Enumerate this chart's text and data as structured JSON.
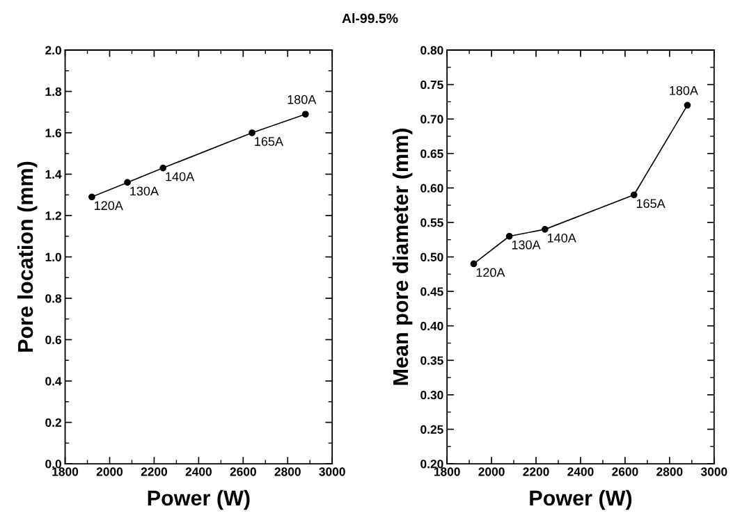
{
  "chart_data": [
    {
      "type": "line",
      "title": "Al-99.5%",
      "xlabel": "Power (W)",
      "ylabel": "Pore location (mm)",
      "x": [
        1920,
        2080,
        2240,
        2640,
        2880
      ],
      "series": [
        {
          "color": "#000000",
          "values": [
            1.29,
            1.36,
            1.43,
            1.6,
            1.69
          ]
        }
      ],
      "marker": "circle",
      "line_style": "solid",
      "xlim": [
        1800,
        3000
      ],
      "xticks": [
        1800,
        2000,
        2200,
        2400,
        2600,
        2800,
        3000
      ],
      "ylim": [
        0,
        2
      ],
      "yticks": [
        {
          "value": 0,
          "label": "0.0"
        },
        {
          "value": 0.2,
          "label": "0.2"
        },
        {
          "value": 0.4,
          "label": "0.4"
        },
        {
          "value": 0.6,
          "label": "0.6"
        },
        {
          "value": 0.8,
          "label": "0.8"
        },
        {
          "value": 1.0,
          "label": "1.0"
        },
        {
          "value": 1.2,
          "label": "1.2"
        },
        {
          "value": 1.4,
          "label": "1.4"
        },
        {
          "value": 1.6,
          "label": "1.6"
        },
        {
          "value": 1.8,
          "label": "1.8"
        },
        {
          "value": 2.0,
          "label": "2.0"
        }
      ],
      "annotations": [
        {
          "text": "120A",
          "x": 1920,
          "y": 1.29
        },
        {
          "text": "130A",
          "x": 2080,
          "y": 1.36
        },
        {
          "text": "140A",
          "x": 2240,
          "y": 1.43
        },
        {
          "text": "165A",
          "x": 2640,
          "y": 1.6
        },
        {
          "text": "180A",
          "x": 2880,
          "y": 1.69
        }
      ]
    },
    {
      "type": "line",
      "xlabel": "Power (W)",
      "ylabel": "Mean pore diameter (mm)",
      "x": [
        1920,
        2080,
        2240,
        2640,
        2880
      ],
      "series": [
        {
          "color": "#000000",
          "values": [
            0.49,
            0.53,
            0.54,
            0.59,
            0.72
          ]
        }
      ],
      "marker": "circle",
      "line_style": "solid",
      "xlim": [
        1800,
        3000
      ],
      "xticks": [
        1800,
        2000,
        2200,
        2400,
        2600,
        2800,
        3000
      ],
      "ylim": [
        0.2,
        0.8
      ],
      "yticks": [
        {
          "value": 0.2,
          "label": "0.20"
        },
        {
          "value": 0.25,
          "label": "0.25"
        },
        {
          "value": 0.3,
          "label": "0.30"
        },
        {
          "value": 0.35,
          "label": "0.35"
        },
        {
          "value": 0.4,
          "label": "0.40"
        },
        {
          "value": 0.45,
          "label": "0.45"
        },
        {
          "value": 0.5,
          "label": "0.50"
        },
        {
          "value": 0.55,
          "label": "0.55"
        },
        {
          "value": 0.6,
          "label": "0.60"
        },
        {
          "value": 0.65,
          "label": "0.65"
        },
        {
          "value": 0.7,
          "label": "0.70"
        },
        {
          "value": 0.75,
          "label": "0.75"
        },
        {
          "value": 0.8,
          "label": "0.80"
        }
      ],
      "annotations": [
        {
          "text": "120A",
          "x": 1920,
          "y": 0.49
        },
        {
          "text": "130A",
          "x": 2080,
          "y": 0.53
        },
        {
          "text": "140A",
          "x": 2240,
          "y": 0.54
        },
        {
          "text": "165A",
          "x": 2640,
          "y": 0.59
        },
        {
          "text": "180A",
          "x": 2880,
          "y": 0.72
        }
      ]
    }
  ]
}
